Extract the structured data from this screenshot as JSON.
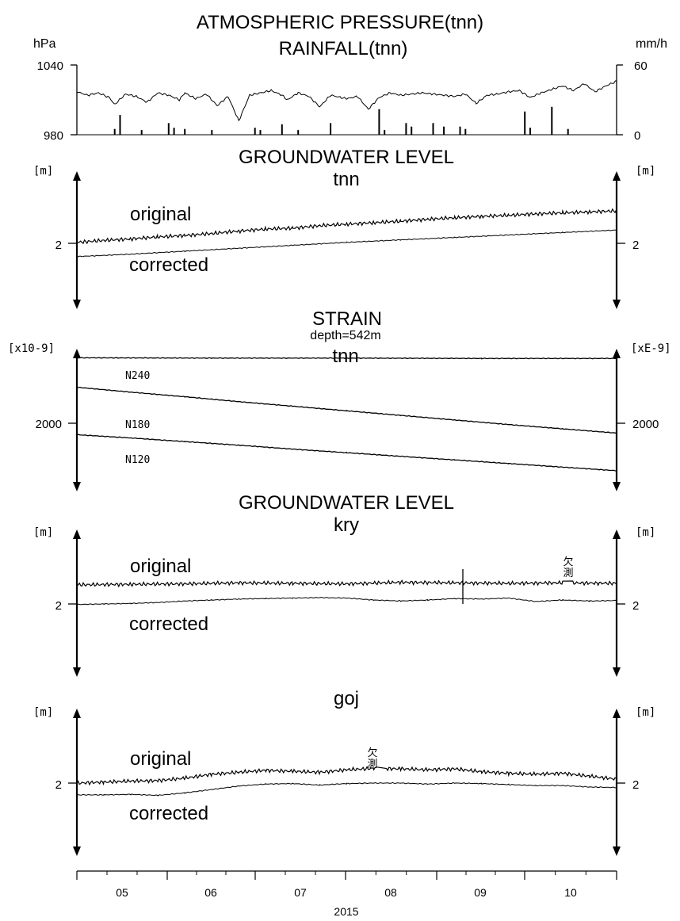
{
  "chart_data": [
    {
      "type": "line",
      "title": "ATMOSPHERIC PRESSURE(tnn)",
      "subtitle": "RAINFALL(tnn)",
      "ylabel_left": "hPa",
      "ylabel_right": "mm/h",
      "left_ticks": [
        "1040",
        "980"
      ],
      "right_ticks": [
        "60",
        "0"
      ],
      "ylim_left": [
        980,
        1040
      ],
      "ylim_right": [
        0,
        60
      ],
      "series": [
        {
          "role": "pressure",
          "x": [
            0.0,
            0.02,
            0.04,
            0.06,
            0.07,
            0.09,
            0.11,
            0.13,
            0.15,
            0.17,
            0.19,
            0.2,
            0.22,
            0.24,
            0.26,
            0.28,
            0.3,
            0.32,
            0.34,
            0.36,
            0.38,
            0.39,
            0.41,
            0.43,
            0.45,
            0.47,
            0.49,
            0.5,
            0.52,
            0.54,
            0.56,
            0.58,
            0.6,
            0.62,
            0.64,
            0.66,
            0.68,
            0.7,
            0.72,
            0.74,
            0.76,
            0.78,
            0.8,
            0.82,
            0.84,
            0.86,
            0.88,
            0.9,
            0.92,
            0.94,
            0.96,
            0.98,
            1.0
          ],
          "values": [
            1017,
            1014,
            1016,
            1012,
            1006,
            1015,
            1013,
            1008,
            1016,
            1014,
            1010,
            1016,
            1011,
            1015,
            1005,
            1013,
            992,
            1014,
            1016,
            1018,
            1014,
            1010,
            1016,
            1013,
            1004,
            1014,
            1012,
            1011,
            1013,
            1002,
            1012,
            1016,
            1014,
            1015,
            1016,
            1015,
            1014,
            1013,
            1015,
            1007,
            1014,
            1015,
            1017,
            1018,
            1012,
            1016,
            1019,
            1022,
            1018,
            1024,
            1017,
            1022,
            1026
          ]
        },
        {
          "role": "rainfall",
          "x": [
            0.07,
            0.08,
            0.12,
            0.17,
            0.18,
            0.2,
            0.25,
            0.33,
            0.34,
            0.38,
            0.41,
            0.47,
            0.56,
            0.57,
            0.61,
            0.62,
            0.66,
            0.68,
            0.71,
            0.72,
            0.83,
            0.84,
            0.88,
            0.91
          ],
          "values": [
            5,
            17,
            4,
            10,
            6,
            5,
            4,
            6,
            4,
            9,
            4,
            10,
            22,
            4,
            10,
            7,
            10,
            7,
            7,
            5,
            20,
            6,
            24,
            5
          ]
        }
      ]
    },
    {
      "type": "line",
      "title": "GROUNDWATER LEVEL",
      "subtitle": "tnn",
      "ylabel_left": "[m]",
      "ylabel_right": "[m]",
      "left_ticks": [
        "2"
      ],
      "right_ticks": [
        "2"
      ],
      "ylim": [
        0,
        4
      ],
      "series": [
        {
          "name": "original",
          "x": [
            0.0,
            0.05,
            0.1,
            0.15,
            0.2,
            0.25,
            0.3,
            0.35,
            0.4,
            0.45,
            0.5,
            0.55,
            0.6,
            0.65,
            0.7,
            0.75,
            0.8,
            0.85,
            0.9,
            0.95,
            1.0
          ],
          "values": [
            2.02,
            2.06,
            2.09,
            2.13,
            2.16,
            2.2,
            2.25,
            2.29,
            2.31,
            2.36,
            2.39,
            2.42,
            2.45,
            2.49,
            2.52,
            2.55,
            2.57,
            2.6,
            2.62,
            2.64,
            2.66
          ]
        },
        {
          "name": "corrected",
          "x": [
            0.0,
            0.1,
            0.2,
            0.3,
            0.4,
            0.5,
            0.6,
            0.7,
            0.8,
            0.9,
            1.0
          ],
          "values": [
            1.73,
            1.78,
            1.84,
            1.9,
            1.96,
            2.02,
            2.07,
            2.12,
            2.17,
            2.22,
            2.27
          ]
        }
      ]
    },
    {
      "type": "line",
      "title": "STRAIN",
      "subtitle": "depth=542m",
      "station": "tnn",
      "ylabel_left": "[x10-9]",
      "ylabel_right": "[xE-9]",
      "left_ticks": [
        "2000"
      ],
      "right_ticks": [
        "2000"
      ],
      "series": [
        {
          "name": "N240",
          "x": [
            0.0,
            0.25,
            0.5,
            0.75,
            1.0
          ],
          "values": [
            2200,
            2199,
            2199,
            2198,
            2198
          ]
        },
        {
          "name": "N180",
          "x": [
            0.0,
            0.1,
            0.2,
            0.3,
            0.4,
            0.5,
            0.6,
            0.7,
            0.8,
            0.9,
            1.0
          ],
          "values": [
            2110,
            2095,
            2081,
            2066,
            2052,
            2038,
            2024,
            2010,
            1996,
            1983,
            1970
          ]
        },
        {
          "name": "N120",
          "x": [
            0.0,
            0.1,
            0.2,
            0.3,
            0.4,
            0.5,
            0.6,
            0.7,
            0.8,
            0.9,
            1.0
          ],
          "values": [
            1965,
            1955,
            1944,
            1933,
            1921,
            1910,
            1899,
            1888,
            1877,
            1866,
            1855
          ]
        }
      ]
    },
    {
      "type": "line",
      "title": "GROUNDWATER LEVEL",
      "subtitle": "kry",
      "ylabel_left": "[m]",
      "ylabel_right": "[m]",
      "left_ticks": [
        "2"
      ],
      "right_ticks": [
        "2"
      ],
      "ylim": [
        0,
        4
      ],
      "gap_label": "欠\n測",
      "series": [
        {
          "name": "original",
          "x": [
            0.0,
            0.1,
            0.2,
            0.3,
            0.4,
            0.5,
            0.6,
            0.7,
            0.8,
            0.9,
            1.0
          ],
          "values": [
            2.39,
            2.4,
            2.41,
            2.43,
            2.42,
            2.41,
            2.44,
            2.43,
            2.42,
            2.43,
            2.42
          ]
        },
        {
          "name": "corrected",
          "x": [
            0.0,
            0.05,
            0.1,
            0.15,
            0.2,
            0.25,
            0.3,
            0.35,
            0.4,
            0.45,
            0.5,
            0.55,
            0.6,
            0.65,
            0.7,
            0.75,
            0.8,
            0.85,
            0.9,
            0.95,
            1.0
          ],
          "values": [
            1.99,
            2.0,
            2.01,
            2.03,
            2.06,
            2.08,
            2.1,
            2.11,
            2.12,
            2.13,
            2.12,
            2.08,
            2.06,
            2.08,
            2.11,
            2.1,
            2.12,
            2.05,
            2.08,
            2.06,
            2.07
          ]
        }
      ]
    },
    {
      "type": "line",
      "title": "",
      "subtitle": "goj",
      "ylabel_left": "[m]",
      "ylabel_right": "[m]",
      "left_ticks": [
        "2"
      ],
      "right_ticks": [
        "2"
      ],
      "ylim": [
        0,
        4
      ],
      "gap_label": "欠\n測",
      "series": [
        {
          "name": "original",
          "x": [
            0.0,
            0.05,
            0.1,
            0.15,
            0.2,
            0.25,
            0.3,
            0.35,
            0.4,
            0.45,
            0.5,
            0.55,
            0.6,
            0.65,
            0.7,
            0.75,
            0.8,
            0.85,
            0.9,
            0.95,
            1.0
          ],
          "values": [
            2.0,
            2.02,
            2.04,
            2.05,
            2.1,
            2.18,
            2.22,
            2.26,
            2.24,
            2.22,
            2.27,
            2.3,
            2.29,
            2.27,
            2.29,
            2.23,
            2.2,
            2.18,
            2.2,
            2.14,
            2.08
          ]
        },
        {
          "name": "corrected",
          "x": [
            0.0,
            0.05,
            0.1,
            0.15,
            0.2,
            0.25,
            0.3,
            0.35,
            0.4,
            0.45,
            0.5,
            0.55,
            0.6,
            0.65,
            0.7,
            0.75,
            0.8,
            0.85,
            0.9,
            0.95,
            1.0
          ],
          "values": [
            1.76,
            1.76,
            1.77,
            1.75,
            1.8,
            1.87,
            1.94,
            1.98,
            1.99,
            1.96,
            1.99,
            2.0,
            2.0,
            1.98,
            2.0,
            1.99,
            1.97,
            1.95,
            1.95,
            1.92,
            1.91
          ]
        }
      ]
    }
  ],
  "xaxis": {
    "month_labels": [
      "05",
      "06",
      "07",
      "08",
      "09",
      "10"
    ],
    "year_label": "2015"
  }
}
